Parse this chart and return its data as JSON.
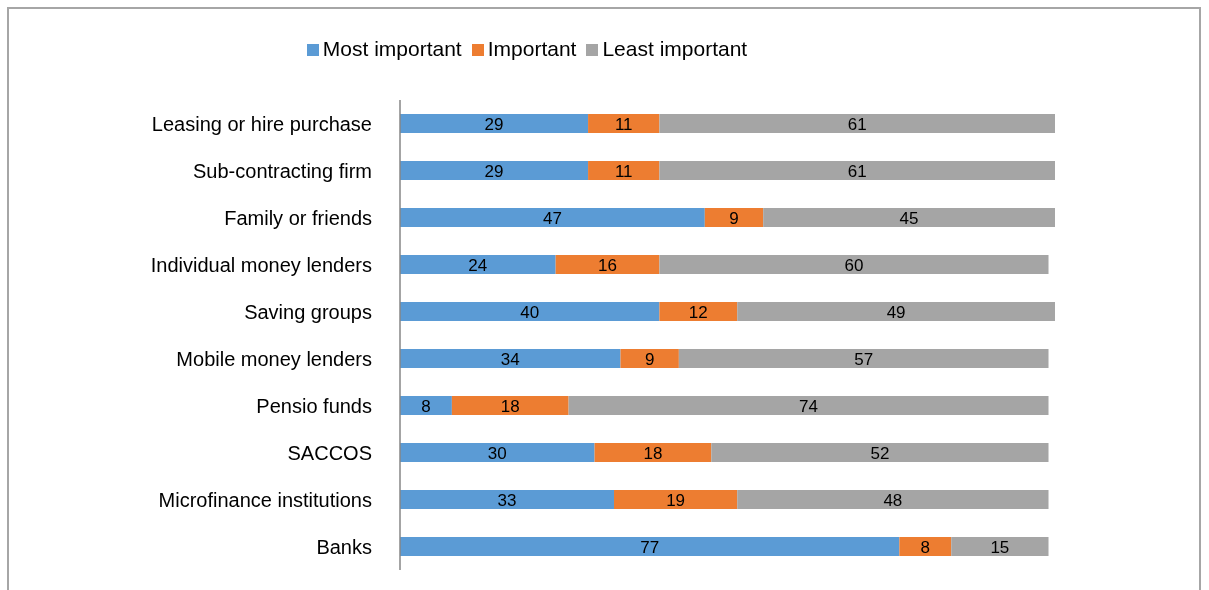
{
  "chart_data": {
    "type": "bar",
    "orientation": "horizontal",
    "stacked": true,
    "categories": [
      "Leasing or hire purchase",
      "Sub-contracting firm",
      "Family or friends",
      "Individual money lenders",
      "Saving groups",
      "Mobile money lenders",
      "Pensio funds",
      "SACCOS",
      "Microfinance institutions",
      "Banks"
    ],
    "series": [
      {
        "name": "Most important",
        "color": "#5b9bd5",
        "values": [
          29,
          29,
          47,
          24,
          40,
          34,
          8,
          30,
          33,
          77
        ]
      },
      {
        "name": "Important",
        "color": "#ed7d31",
        "values": [
          11,
          11,
          9,
          16,
          12,
          9,
          18,
          18,
          19,
          8
        ]
      },
      {
        "name": "Least important",
        "color": "#a5a5a5",
        "values": [
          61,
          61,
          45,
          60,
          49,
          57,
          74,
          52,
          48,
          15
        ]
      }
    ],
    "data_labels": true,
    "legend": "top"
  }
}
